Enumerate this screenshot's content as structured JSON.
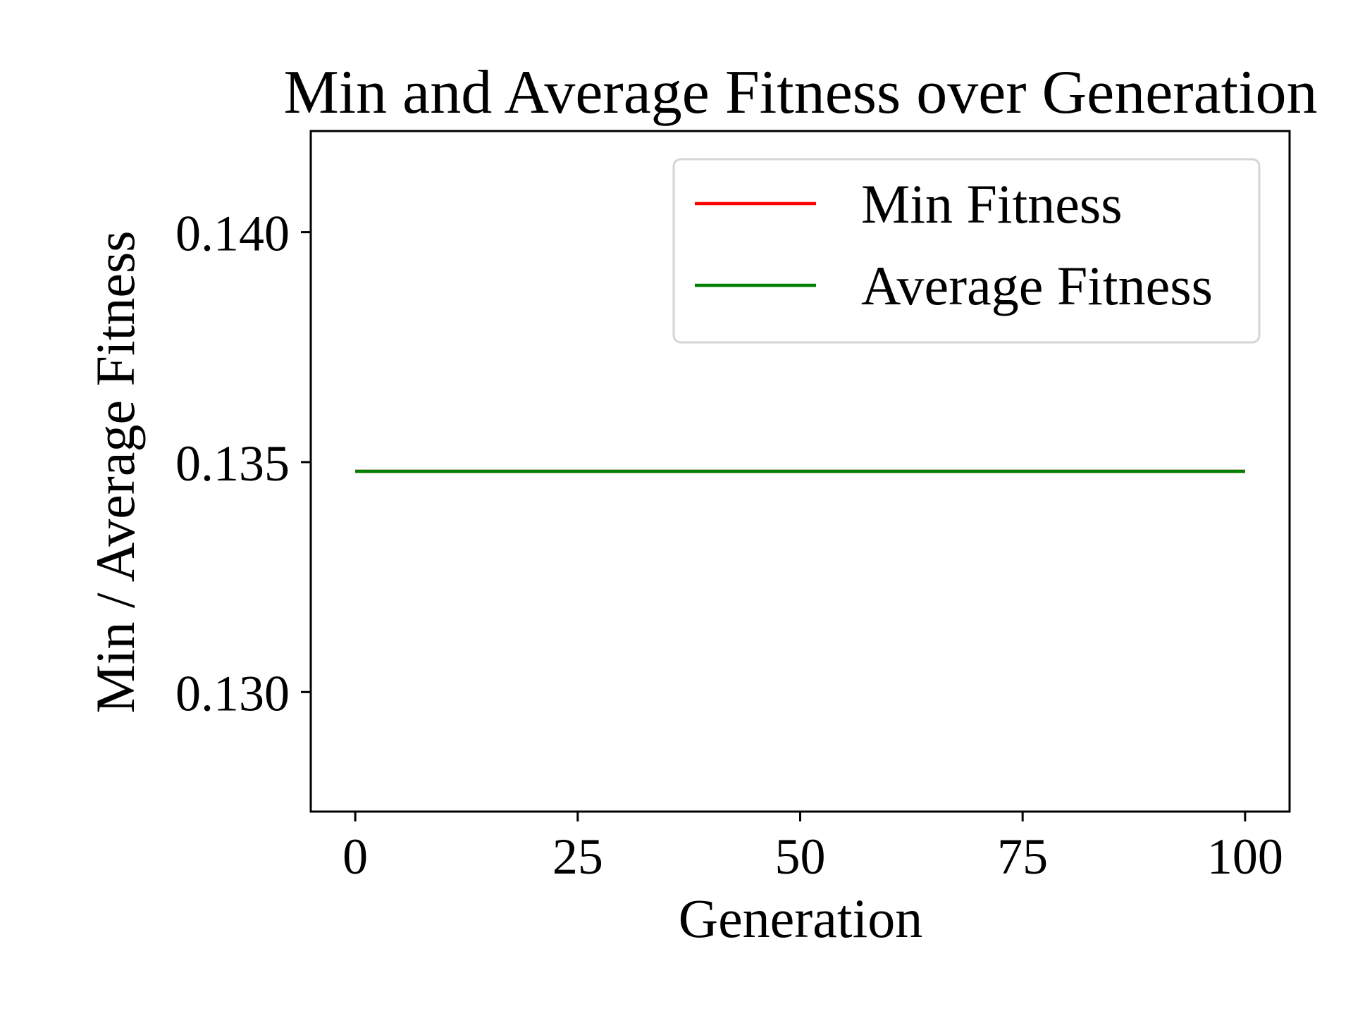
{
  "chart_data": {
    "type": "line",
    "title": "Min and Average Fitness over Generation",
    "xlabel": "Generation",
    "ylabel": "Min / Average Fitness",
    "xlim": [
      -5,
      105
    ],
    "ylim": [
      0.1274,
      0.1422
    ],
    "xticks": [
      0,
      25,
      50,
      75,
      100
    ],
    "xtick_labels": [
      "0",
      "25",
      "50",
      "75",
      "100"
    ],
    "yticks": [
      0.13,
      0.135,
      0.14
    ],
    "ytick_labels": [
      "0.130",
      "0.135",
      "0.140"
    ],
    "grid": false,
    "legend_position": "upper right",
    "series": [
      {
        "name": "Min Fitness",
        "color": "#ff0000",
        "x": [
          0,
          100
        ],
        "values": [
          0.1348,
          0.1348
        ]
      },
      {
        "name": "Average Fitness",
        "color": "#008000",
        "x": [
          0,
          100
        ],
        "values": [
          0.1348,
          0.1348
        ]
      }
    ]
  }
}
